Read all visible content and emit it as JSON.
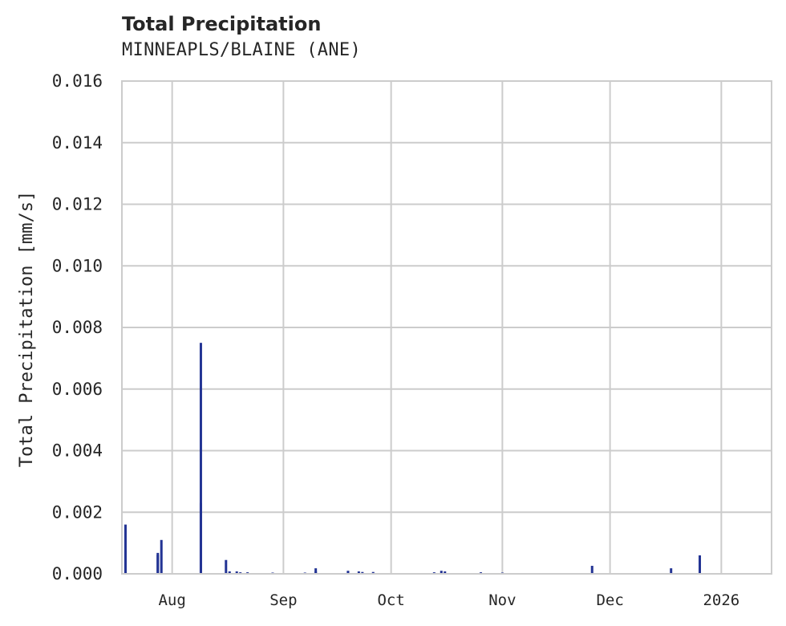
{
  "header": {
    "title": "Total Precipitation",
    "subtitle": "MINNEAPLS/BLAINE (ANE)"
  },
  "colors": {
    "series": "#233494",
    "grid": "#cccccc",
    "text": "#262626"
  },
  "chart_data": {
    "type": "line",
    "title": "Total Precipitation",
    "subtitle": "MINNEAPLS/BLAINE (ANE)",
    "xlabel": "",
    "ylabel": "Total Precipitation [mm/s]",
    "ylim": [
      0.0,
      0.016
    ],
    "xlim": [
      "2025-07-18",
      "2026-01-15"
    ],
    "grid": true,
    "legend": null,
    "yticks": [
      "0.000",
      "0.002",
      "0.004",
      "0.006",
      "0.008",
      "0.010",
      "0.012",
      "0.014",
      "0.016"
    ],
    "xticks": [
      "Aug",
      "Sep",
      "Oct",
      "Nov",
      "Dec",
      "2026"
    ],
    "series": [
      {
        "name": "Total Precipitation",
        "color": "#233494",
        "points": [
          {
            "x": "2025-07-19",
            "y": 0.0016
          },
          {
            "x": "2025-07-19",
            "y": 0.00075
          },
          {
            "x": "2025-07-28",
            "y": 0.00062
          },
          {
            "x": "2025-07-28",
            "y": 0.00068
          },
          {
            "x": "2025-07-29",
            "y": 0.0011
          },
          {
            "x": "2025-08-09",
            "y": 0.0075
          },
          {
            "x": "2025-08-09",
            "y": 0.0023
          },
          {
            "x": "2025-08-16",
            "y": 0.00045
          },
          {
            "x": "2025-08-17",
            "y": 8e-05
          },
          {
            "x": "2025-08-19",
            "y": 8e-05
          },
          {
            "x": "2025-08-20",
            "y": 5e-05
          },
          {
            "x": "2025-08-22",
            "y": 5e-05
          },
          {
            "x": "2025-08-29",
            "y": 4e-05
          },
          {
            "x": "2025-09-07",
            "y": 4e-05
          },
          {
            "x": "2025-09-10",
            "y": 0.00018
          },
          {
            "x": "2025-09-10",
            "y": 8e-05
          },
          {
            "x": "2025-09-19",
            "y": 0.0001
          },
          {
            "x": "2025-09-19",
            "y": 8e-05
          },
          {
            "x": "2025-09-22",
            "y": 8e-05
          },
          {
            "x": "2025-09-23",
            "y": 6e-05
          },
          {
            "x": "2025-09-26",
            "y": 6e-05
          },
          {
            "x": "2025-10-13",
            "y": 5e-05
          },
          {
            "x": "2025-10-15",
            "y": 0.0001
          },
          {
            "x": "2025-10-16",
            "y": 8e-05
          },
          {
            "x": "2025-10-26",
            "y": 5e-05
          },
          {
            "x": "2025-11-01",
            "y": 4e-05
          },
          {
            "x": "2025-11-26",
            "y": 0.00026
          },
          {
            "x": "2025-12-18",
            "y": 0.00018
          },
          {
            "x": "2025-12-26",
            "y": 0.0006
          }
        ]
      }
    ]
  }
}
